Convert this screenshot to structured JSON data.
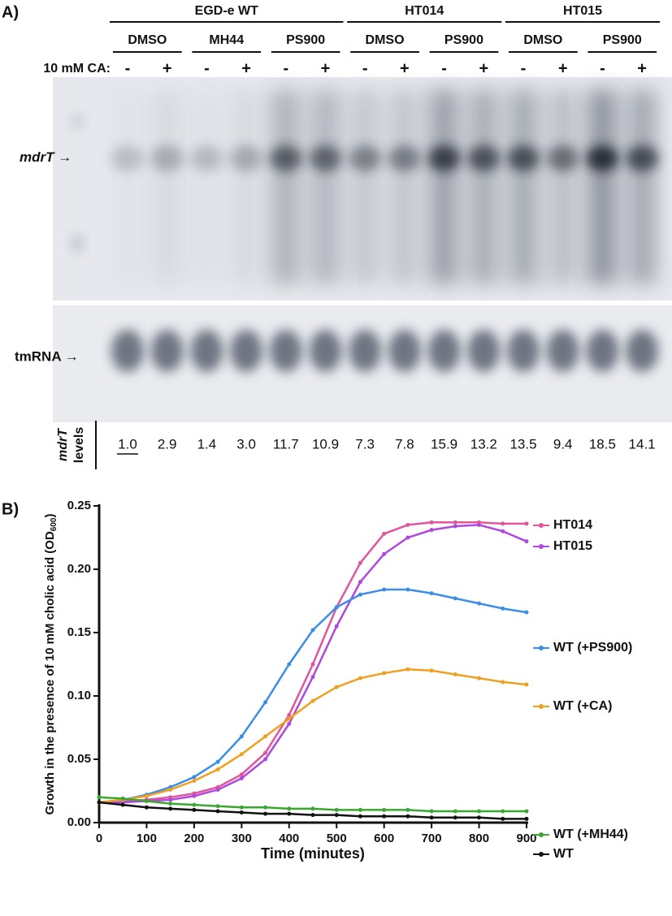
{
  "panel_a": {
    "panel_label": "A)",
    "groups": [
      {
        "name": "EGD-e WT",
        "subgroups": [
          "DMSO",
          "MH44",
          "PS900"
        ]
      },
      {
        "name": "HT014",
        "subgroups": [
          "DMSO",
          "PS900"
        ]
      },
      {
        "name": "HT015",
        "subgroups": [
          "DMSO",
          "PS900"
        ]
      }
    ],
    "ca_label": "10 mM CA:",
    "lane_signs": [
      "-",
      "+",
      "-",
      "+",
      "-",
      "+",
      "-",
      "+",
      "-",
      "+",
      "-",
      "+",
      "-",
      "+"
    ],
    "mdrt_label": {
      "gene": "mdrT",
      "arrow": " →"
    },
    "tmrna_label": "tmRNA →",
    "levels_label": {
      "gene": "mdrT",
      "word": "levels"
    },
    "levels": [
      1.0,
      2.9,
      1.4,
      3.0,
      11.7,
      10.9,
      7.3,
      7.8,
      15.9,
      13.2,
      13.5,
      9.4,
      18.5,
      14.1
    ],
    "value_labels": [
      "1.0",
      "2.9",
      "1.4",
      "3.0",
      "11.7",
      "10.9",
      "7.3",
      "7.8",
      "15.9",
      "13.2",
      "13.5",
      "9.4",
      "18.5",
      "14.1"
    ]
  },
  "panel_b": {
    "panel_label": "B)",
    "chart_data": {
      "type": "line",
      "ylabel": "Growth in the presence of 10 mM cholic acid (OD",
      "ylabel_sub": "600",
      "ylabel_end": ")",
      "xlabel": "Time (minutes)",
      "x": [
        0,
        50,
        100,
        150,
        200,
        250,
        300,
        350,
        400,
        450,
        500,
        550,
        600,
        650,
        700,
        750,
        800,
        850,
        900
      ],
      "xlim": [
        0,
        900
      ],
      "xticks": [
        0,
        100,
        200,
        300,
        400,
        500,
        600,
        700,
        800,
        900
      ],
      "ylim": [
        0,
        0.25
      ],
      "yticks": [
        {
          "value": 0,
          "label": "0.00"
        },
        {
          "value": 0.05,
          "label": "0.05"
        },
        {
          "value": 0.1,
          "label": "0.10"
        },
        {
          "value": 0.15,
          "label": "0.15"
        },
        {
          "value": 0.2,
          "label": "0.20"
        },
        {
          "value": 0.25,
          "label": "0.25"
        }
      ],
      "series": [
        {
          "name": "HT014",
          "color": "#e0559c",
          "values": [
            0.016,
            0.017,
            0.018,
            0.02,
            0.023,
            0.028,
            0.038,
            0.055,
            0.085,
            0.125,
            0.17,
            0.205,
            0.228,
            0.235,
            0.237,
            0.237,
            0.237,
            0.236,
            0.236
          ]
        },
        {
          "name": "HT015",
          "color": "#b048e0",
          "values": [
            0.016,
            0.016,
            0.017,
            0.018,
            0.021,
            0.026,
            0.035,
            0.05,
            0.078,
            0.115,
            0.155,
            0.19,
            0.212,
            0.225,
            0.231,
            0.234,
            0.235,
            0.23,
            0.222
          ]
        },
        {
          "name": "WT (+PS900)",
          "color": "#3a8de8",
          "values": [
            0.016,
            0.018,
            0.022,
            0.028,
            0.036,
            0.048,
            0.068,
            0.095,
            0.125,
            0.152,
            0.17,
            0.18,
            0.184,
            0.184,
            0.181,
            0.177,
            0.173,
            0.169,
            0.166
          ]
        },
        {
          "name": "WT (+CA)",
          "color": "#f0a020",
          "values": [
            0.016,
            0.018,
            0.021,
            0.026,
            0.033,
            0.042,
            0.054,
            0.068,
            0.082,
            0.096,
            0.107,
            0.114,
            0.118,
            0.121,
            0.12,
            0.117,
            0.114,
            0.111,
            0.109
          ]
        },
        {
          "name": "WT (+MH44)",
          "color": "#3aa830",
          "values": [
            0.02,
            0.019,
            0.017,
            0.015,
            0.014,
            0.013,
            0.012,
            0.012,
            0.011,
            0.011,
            0.01,
            0.01,
            0.01,
            0.01,
            0.009,
            0.009,
            0.009,
            0.009,
            0.009
          ]
        },
        {
          "name": "WT",
          "color": "#111111",
          "values": [
            0.016,
            0.014,
            0.012,
            0.011,
            0.01,
            0.009,
            0.008,
            0.007,
            0.007,
            0.006,
            0.006,
            0.005,
            0.005,
            0.005,
            0.004,
            0.004,
            0.004,
            0.003,
            0.003
          ]
        }
      ]
    }
  }
}
